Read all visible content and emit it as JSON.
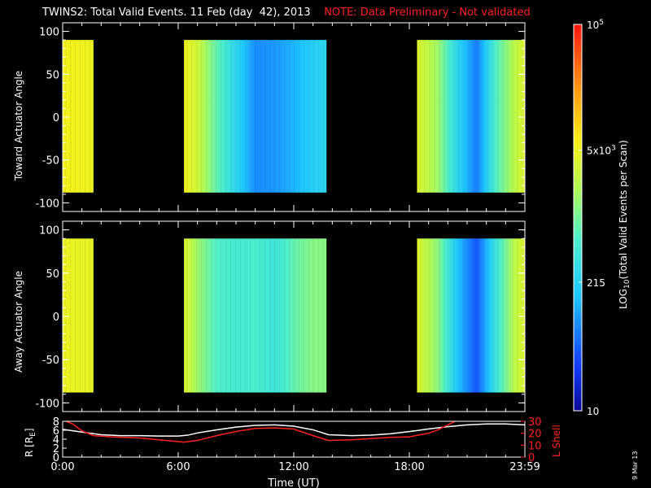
{
  "title": "TWINS2: Total Valid Events. 11 Feb (day  42), 2013",
  "note": "NOTE: Data Preliminary - Not validated",
  "date_stamp": "9 Mar 13",
  "colors": {
    "background": "#000000",
    "axes": "#ffffff",
    "note": "#ff2020",
    "r_line": "#ffffff",
    "lshell_line": "#ff2020"
  },
  "chart_data": [
    {
      "type": "heatmap",
      "panel": "top",
      "ylabel": "Toward Actuator Angle",
      "xlim": [
        0,
        24
      ],
      "ylim": [
        -110,
        110
      ],
      "yticks": [
        100,
        50,
        0,
        -50,
        -100
      ],
      "data_y_range": [
        -88,
        90
      ],
      "coverage_hours": [
        [
          0.0,
          1.6
        ],
        [
          6.3,
          13.7
        ],
        [
          18.4,
          24.0
        ]
      ],
      "profile": [
        {
          "h": 0.0,
          "v": 3.75
        },
        {
          "h": 1.6,
          "v": 3.7
        },
        {
          "h": 6.3,
          "v": 3.75
        },
        {
          "h": 7.0,
          "v": 3.5
        },
        {
          "h": 8.0,
          "v": 2.9
        },
        {
          "h": 9.0,
          "v": 2.4
        },
        {
          "h": 10.0,
          "v": 1.9
        },
        {
          "h": 11.0,
          "v": 1.95
        },
        {
          "h": 12.0,
          "v": 2.1
        },
        {
          "h": 13.0,
          "v": 2.3
        },
        {
          "h": 13.7,
          "v": 2.4
        },
        {
          "h": 18.4,
          "v": 3.6
        },
        {
          "h": 19.5,
          "v": 3.2
        },
        {
          "h": 20.5,
          "v": 2.4
        },
        {
          "h": 21.5,
          "v": 1.8
        },
        {
          "h": 22.5,
          "v": 2.8
        },
        {
          "h": 23.5,
          "v": 3.4
        },
        {
          "h": 24.0,
          "v": 3.6
        }
      ]
    },
    {
      "type": "heatmap",
      "panel": "middle",
      "ylabel": "Away Actuator Angle",
      "xlim": [
        0,
        24
      ],
      "ylim": [
        -110,
        110
      ],
      "yticks": [
        100,
        50,
        0,
        -50,
        -100
      ],
      "data_y_range": [
        -88,
        90
      ],
      "coverage_hours": [
        [
          0.0,
          1.6
        ],
        [
          6.3,
          13.7
        ],
        [
          18.4,
          24.0
        ]
      ],
      "profile": [
        {
          "h": 0.0,
          "v": 3.7
        },
        {
          "h": 1.6,
          "v": 3.65
        },
        {
          "h": 6.3,
          "v": 3.6
        },
        {
          "h": 7.0,
          "v": 3.2
        },
        {
          "h": 8.0,
          "v": 2.8
        },
        {
          "h": 9.0,
          "v": 2.7
        },
        {
          "h": 10.0,
          "v": 2.75
        },
        {
          "h": 11.0,
          "v": 2.6
        },
        {
          "h": 12.0,
          "v": 2.9
        },
        {
          "h": 13.0,
          "v": 3.1
        },
        {
          "h": 13.7,
          "v": 3.1
        },
        {
          "h": 18.4,
          "v": 3.6
        },
        {
          "h": 19.5,
          "v": 3.1
        },
        {
          "h": 20.5,
          "v": 2.2
        },
        {
          "h": 21.5,
          "v": 1.6
        },
        {
          "h": 22.5,
          "v": 2.6
        },
        {
          "h": 23.5,
          "v": 3.4
        },
        {
          "h": 24.0,
          "v": 3.6
        }
      ]
    },
    {
      "type": "line",
      "panel": "bottom",
      "xlabel": "Time (UT)",
      "xticks": [
        "0:00",
        "6:00",
        "12:00",
        "18:00",
        "23:59"
      ],
      "xlim": [
        0,
        24
      ],
      "left_axis": {
        "label": "R [R",
        "label_sub": "E",
        "label_end": "]",
        "ylim": [
          0,
          8
        ],
        "ticks": [
          0,
          2,
          4,
          6,
          8
        ]
      },
      "right_axis": {
        "label": "L Shell",
        "ylim": [
          0,
          30
        ],
        "ticks": [
          0,
          10,
          20,
          30
        ]
      },
      "series": [
        {
          "axis": "left",
          "color": "#ffffff",
          "x": [
            0,
            1,
            2,
            3,
            4,
            5,
            6,
            6.5,
            7,
            8,
            9,
            10,
            11,
            12,
            13,
            13.8,
            15,
            16,
            17,
            18,
            19,
            20,
            21,
            22,
            23,
            24
          ],
          "y": [
            6.2,
            5.6,
            5.0,
            4.8,
            4.8,
            4.7,
            4.7,
            4.9,
            5.4,
            6.1,
            6.7,
            7.1,
            7.2,
            6.9,
            6.1,
            5.0,
            4.8,
            4.9,
            5.2,
            5.7,
            6.3,
            6.8,
            7.2,
            7.4,
            7.4,
            7.2
          ]
        },
        {
          "axis": "right",
          "color": "#ff2020",
          "x": [
            0,
            0.5,
            1,
            1.6,
            2.5,
            4,
            5,
            6.3,
            7,
            8,
            9,
            10,
            11,
            12,
            13,
            13.8,
            15,
            16,
            17,
            18,
            18.5,
            19,
            19.5,
            20,
            20.5
          ],
          "y": [
            31,
            28,
            22,
            18,
            17,
            16,
            14.5,
            12.5,
            14,
            18,
            21.5,
            24,
            24.5,
            23.5,
            18,
            14,
            14.5,
            15.5,
            16.5,
            17,
            18.5,
            20,
            23,
            27,
            31
          ]
        }
      ]
    }
  ],
  "colorbar": {
    "scale": "log",
    "range": [
      10,
      100000
    ],
    "tick_labels": [
      {
        "value": 100000,
        "base": "10",
        "exp": "5"
      },
      {
        "value": 5000,
        "base": "5x10",
        "exp": "3"
      },
      {
        "value": 215,
        "base": "215",
        "exp": ""
      },
      {
        "value": 10,
        "base": "10",
        "exp": ""
      }
    ],
    "label_main": "LOG",
    "label_sub": "10",
    "label_rest": "(Total Valid Events per Scan)"
  }
}
